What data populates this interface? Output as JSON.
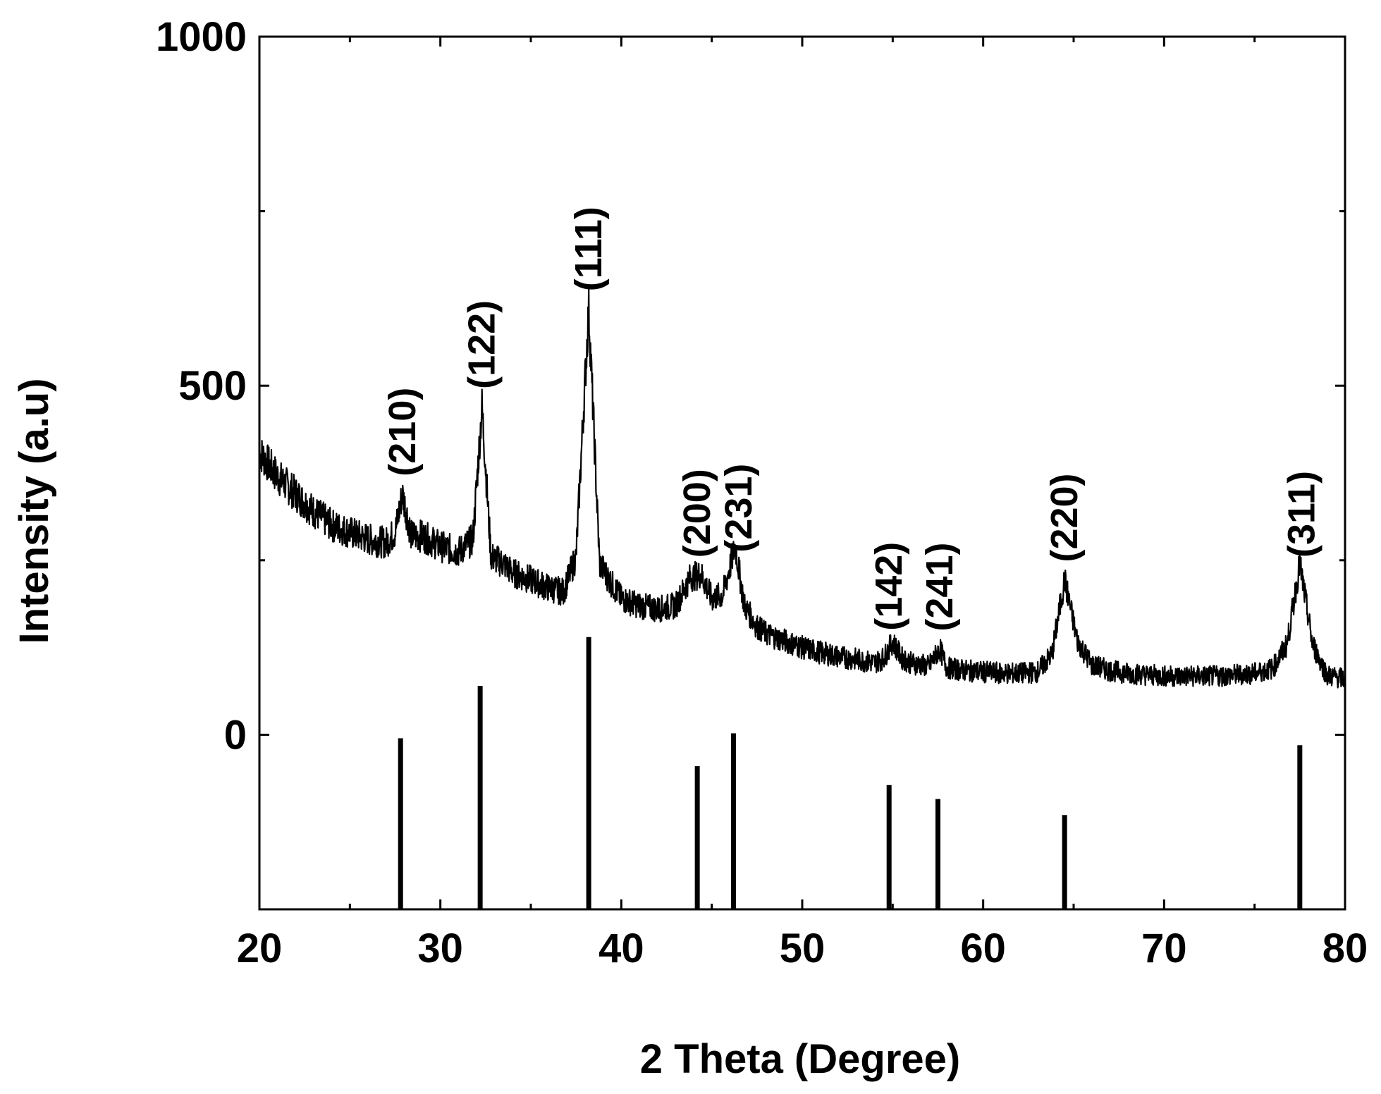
{
  "chart_data": {
    "type": "line",
    "title": "",
    "xlabel": "2 Theta (Degree)",
    "ylabel": "Intensity (a.u)",
    "xlim": [
      20,
      80
    ],
    "ylim": [
      -250,
      1000
    ],
    "x_ticks": [
      20,
      30,
      40,
      50,
      60,
      70,
      80
    ],
    "y_ticks": [
      0,
      500,
      1000
    ],
    "grid": false,
    "legend": "none",
    "color": "#000000",
    "series": [
      {
        "x": [
          20,
          21,
          22,
          23,
          24,
          25,
          26,
          27,
          27.5,
          27.9,
          28.4,
          29,
          30,
          31,
          31.8,
          32.3,
          32.8,
          33.5,
          34,
          35,
          36,
          36.8,
          37.5,
          38.2,
          38.8,
          39.5,
          40,
          41,
          42,
          43,
          43.8,
          44.4,
          45,
          45.6,
          46.3,
          46.8,
          47.5,
          48,
          49,
          50,
          51,
          52,
          53,
          54,
          54.5,
          55,
          55.5,
          56,
          57,
          57.6,
          58,
          59,
          60,
          61,
          62,
          63,
          63.8,
          64.5,
          65.2,
          66,
          67,
          68,
          69,
          70,
          71,
          72,
          73,
          74,
          75,
          76,
          76.8,
          77.5,
          78.2,
          79,
          80
        ],
        "y": [
          405,
          370,
          345,
          320,
          300,
          290,
          280,
          275,
          290,
          345,
          285,
          285,
          270,
          262,
          280,
          470,
          255,
          245,
          232,
          222,
          210,
          205,
          255,
          610,
          245,
          215,
          195,
          185,
          180,
          185,
          225,
          230,
          195,
          200,
          270,
          185,
          155,
          145,
          135,
          125,
          118,
          112,
          108,
          103,
          110,
          133,
          110,
          103,
          98,
          123,
          96,
          92,
          90,
          88,
          88,
          90,
          115,
          222,
          135,
          100,
          92,
          88,
          86,
          84,
          84,
          84,
          84,
          86,
          88,
          95,
          130,
          245,
          130,
          85,
          80
        ]
      }
    ],
    "reference_lines": {
      "x": [
        27.8,
        32.2,
        38.2,
        44.2,
        46.2,
        54.8,
        57.5,
        64.5,
        77.5
      ],
      "y": [
        -5,
        70,
        140,
        -45,
        2,
        -72,
        -92,
        -115,
        -15
      ]
    },
    "peak_labels": [
      {
        "text": "(210)",
        "x": 27.9
      },
      {
        "text": "(122)",
        "x": 32.3
      },
      {
        "text": "(111)",
        "x": 38.2
      },
      {
        "text": "(200)",
        "x": 44.2
      },
      {
        "text": "(231)",
        "x": 46.5
      },
      {
        "text": "(142)",
        "x": 54.8
      },
      {
        "text": "(241)",
        "x": 57.6
      },
      {
        "text": "(220)",
        "x": 64.5
      },
      {
        "text": "(311)",
        "x": 77.6
      }
    ]
  }
}
